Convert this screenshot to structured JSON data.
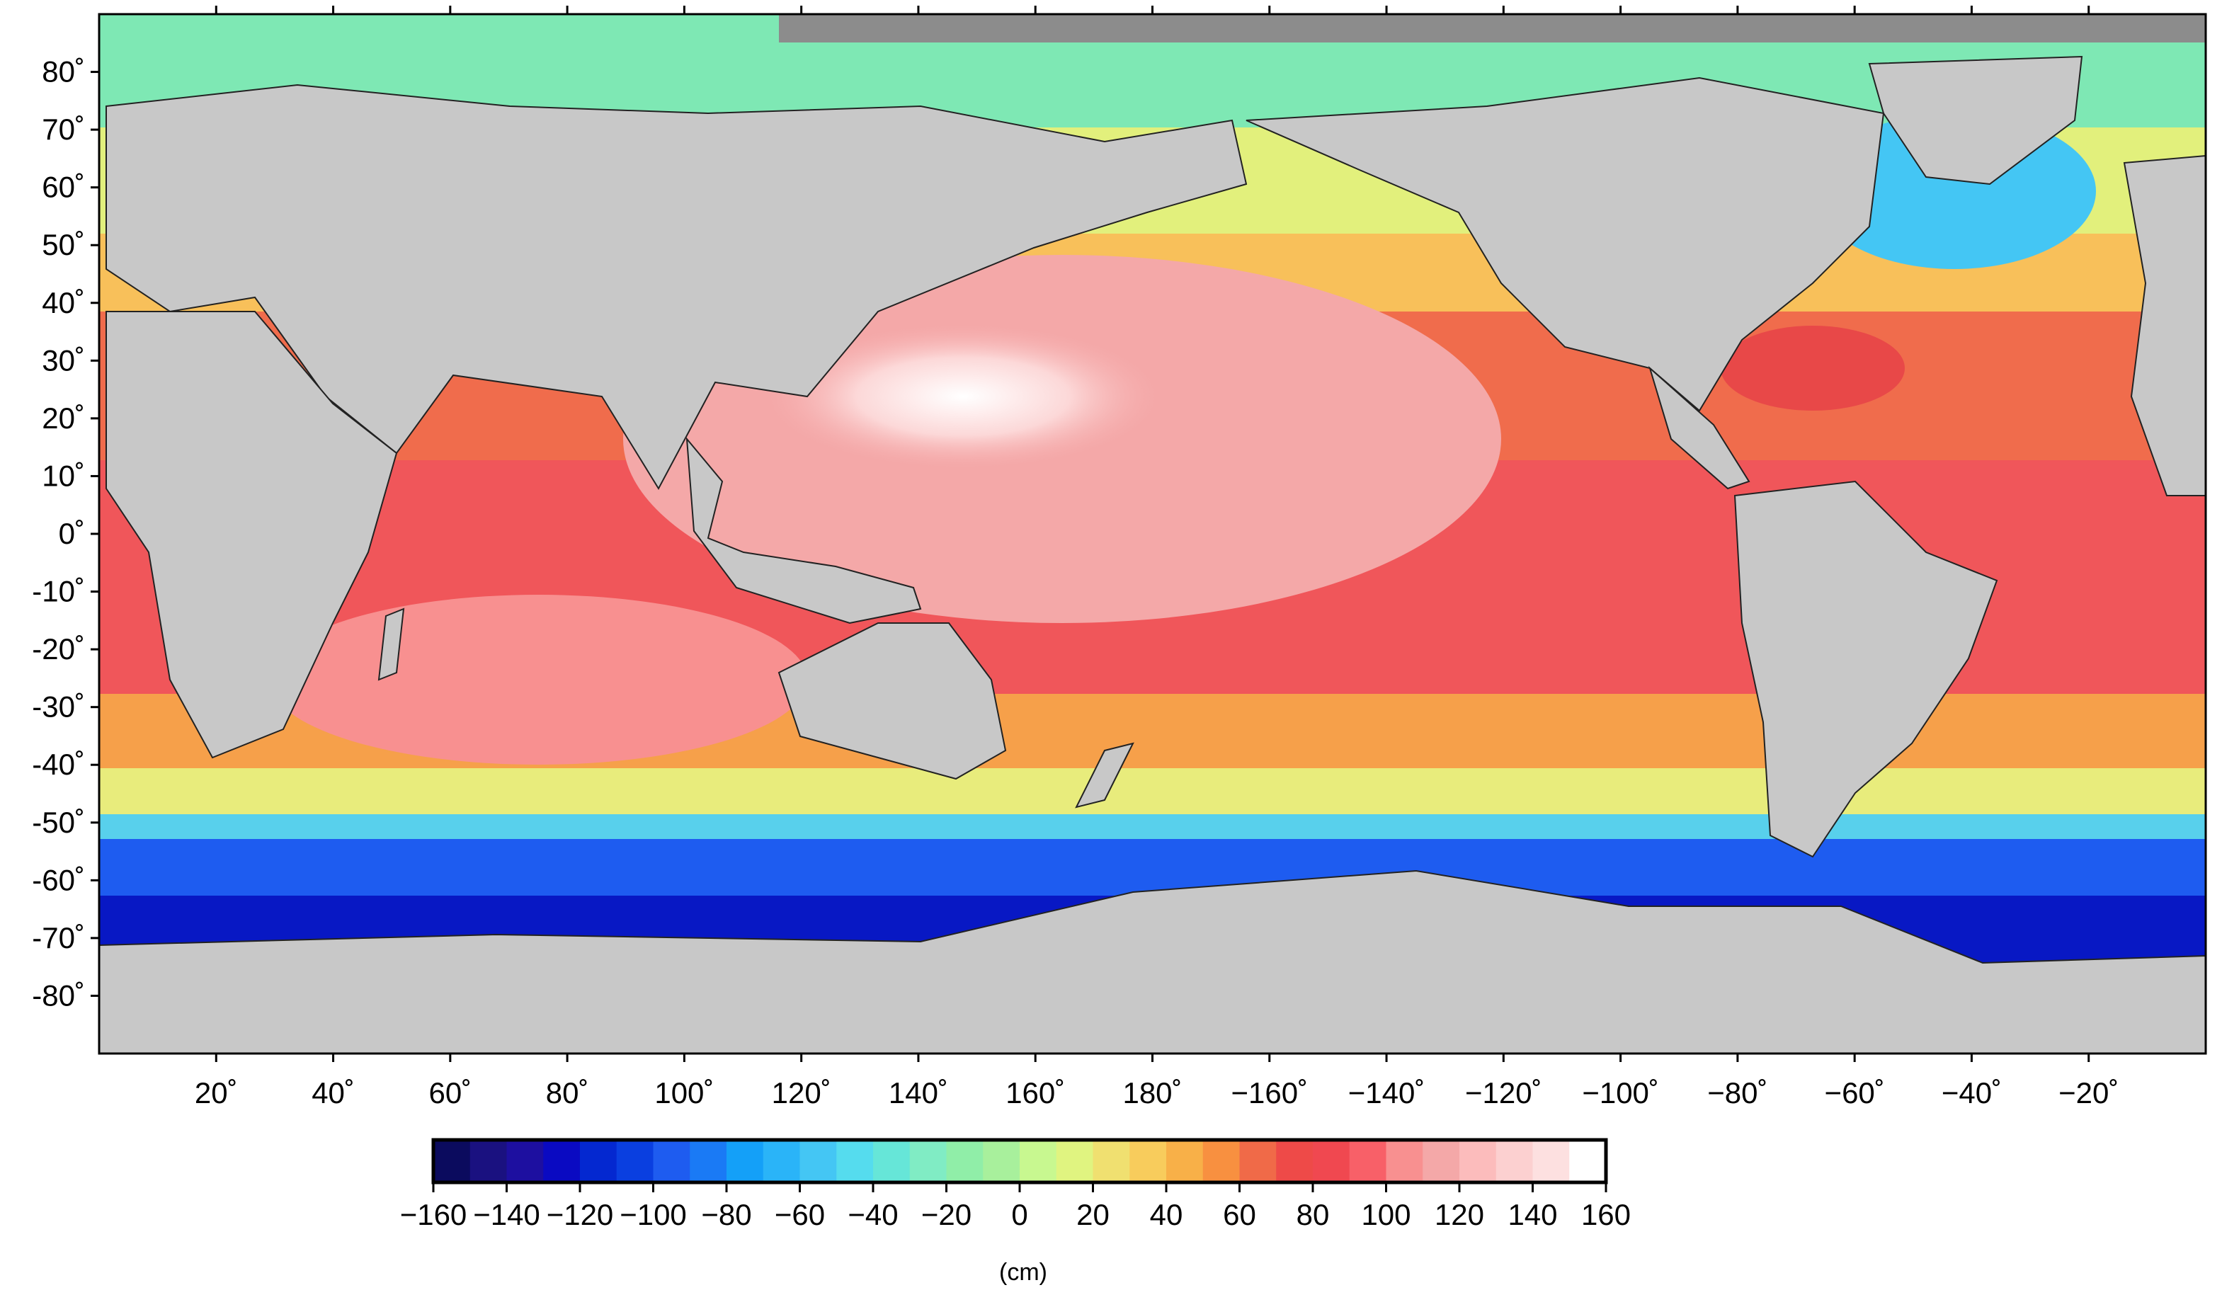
{
  "map": {
    "projection": "equirectangular",
    "lon_range": [
      0,
      360
    ],
    "lat_range": [
      -90,
      90
    ],
    "land_color": "#c8c8c8",
    "frame_color": "#000000"
  },
  "axes": {
    "lat_labels": [
      {
        "lat": 80,
        "text": "80˚"
      },
      {
        "lat": 70,
        "text": "70˚"
      },
      {
        "lat": 60,
        "text": "60˚"
      },
      {
        "lat": 50,
        "text": "50˚"
      },
      {
        "lat": 40,
        "text": "40˚"
      },
      {
        "lat": 30,
        "text": "30˚"
      },
      {
        "lat": 20,
        "text": "20˚"
      },
      {
        "lat": 10,
        "text": "10˚"
      },
      {
        "lat": 0,
        "text": "0˚"
      },
      {
        "lat": -10,
        "text": "-10˚"
      },
      {
        "lat": -20,
        "text": "-20˚"
      },
      {
        "lat": -30,
        "text": "-30˚"
      },
      {
        "lat": -40,
        "text": "-40˚"
      },
      {
        "lat": -50,
        "text": "-50˚"
      },
      {
        "lat": -60,
        "text": "-60˚"
      },
      {
        "lat": -70,
        "text": "-70˚"
      },
      {
        "lat": -80,
        "text": "-80˚"
      }
    ],
    "lon_labels": [
      {
        "lon": 20,
        "text": "20˚"
      },
      {
        "lon": 40,
        "text": "40˚"
      },
      {
        "lon": 60,
        "text": "60˚"
      },
      {
        "lon": 80,
        "text": "80˚"
      },
      {
        "lon": 100,
        "text": "100˚"
      },
      {
        "lon": 120,
        "text": "120˚"
      },
      {
        "lon": 140,
        "text": "140˚"
      },
      {
        "lon": 160,
        "text": "160˚"
      },
      {
        "lon": 180,
        "text": "180˚"
      },
      {
        "lon": 200,
        "text": "−160˚"
      },
      {
        "lon": 220,
        "text": "−140˚"
      },
      {
        "lon": 240,
        "text": "−120˚"
      },
      {
        "lon": 260,
        "text": "−100˚"
      },
      {
        "lon": 280,
        "text": "−80˚"
      },
      {
        "lon": 300,
        "text": "−60˚"
      },
      {
        "lon": 320,
        "text": "−40˚"
      },
      {
        "lon": 340,
        "text": "−20˚"
      }
    ]
  },
  "colorbar": {
    "unit": "(cm)",
    "range": [
      -160,
      160
    ],
    "ticks": [
      {
        "value": -160,
        "text": "−160"
      },
      {
        "value": -140,
        "text": "−140"
      },
      {
        "value": -120,
        "text": "−120"
      },
      {
        "value": -100,
        "text": "−100"
      },
      {
        "value": -80,
        "text": "−80"
      },
      {
        "value": -60,
        "text": "−60"
      },
      {
        "value": -40,
        "text": "−40"
      },
      {
        "value": -20,
        "text": "−20"
      },
      {
        "value": 0,
        "text": "0"
      },
      {
        "value": 20,
        "text": "20"
      },
      {
        "value": 40,
        "text": "40"
      },
      {
        "value": 60,
        "text": "60"
      },
      {
        "value": 80,
        "text": "80"
      },
      {
        "value": 100,
        "text": "100"
      },
      {
        "value": 120,
        "text": "120"
      },
      {
        "value": 140,
        "text": "140"
      },
      {
        "value": 160,
        "text": "160"
      }
    ],
    "colors": [
      "#0b0b5e",
      "#1a1180",
      "#1d0fa0",
      "#0a0ac2",
      "#0428d0",
      "#0a3fe0",
      "#1e5cf0",
      "#1a7af5",
      "#14a0f8",
      "#2ab4f8",
      "#44c6f4",
      "#55dcee",
      "#66e6d8",
      "#80ecc4",
      "#90eea8",
      "#a8f09c",
      "#c8f890",
      "#e0f480",
      "#f0e070",
      "#f8cc5c",
      "#f8b048",
      "#f89040",
      "#f06a48",
      "#ee4a48",
      "#f04850",
      "#f86068",
      "#f89090",
      "#f4a8a8",
      "#fcbcbc",
      "#fcd0d0",
      "#fde0e0",
      "#ffffff"
    ]
  }
}
